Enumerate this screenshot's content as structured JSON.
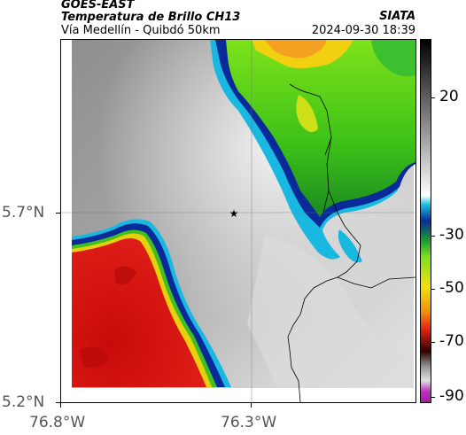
{
  "header": {
    "satellite": "GOES-EAST",
    "product": "Temperatura de Brillo CH13",
    "subtitle": "Vía Medellín - Quibdó 50km",
    "org": "SIATA",
    "datetime": "2024-09-30 18:39"
  },
  "axes": {
    "lat_ticks": [
      "5.7°N",
      "5.2°N"
    ],
    "lon_ticks": [
      "76.8°W",
      "76.3°W"
    ]
  },
  "colorbar": {
    "ticks": [
      "20",
      "-30",
      "-50",
      "-70",
      "-90"
    ]
  },
  "marker": {
    "symbol": "★",
    "name": "location-star"
  },
  "colors": {
    "warm_gray": "#8a8a8a",
    "cold_red": "#d81812",
    "cold_green": "#6ee018",
    "cold_yellow": "#f0d010",
    "boundary_blue": "#0a2a9a"
  }
}
